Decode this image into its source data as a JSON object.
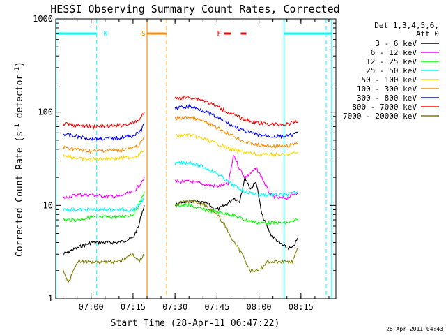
{
  "chart_data": {
    "type": "line",
    "title": "HESSI Observing Summary Count Rates, Corrected",
    "xlabel": "Start Time (28-Apr-11 06:47:22)",
    "ylabel_main": "Corrected Count Rate (s",
    "ylabel_sup1": "-1",
    "ylabel_mid": " detector",
    "ylabel_sup2": "-1",
    "ylabel_end": ")",
    "xlim": [
      "06:47:22",
      "08:27:30"
    ],
    "ylim": [
      1,
      1000
    ],
    "yscale": "log",
    "xticks": [
      "07:00",
      "07:15",
      "07:30",
      "07:45",
      "08:00",
      "08:15"
    ],
    "yticks": [
      1,
      10,
      100,
      1000
    ],
    "ytick_labels": [
      "1",
      "10",
      "100",
      "1000"
    ],
    "legend_header": [
      "Det 1,3,4,5,6,",
      "Att 0"
    ],
    "legend_placement": "right",
    "footer_timestamp": "28-Apr-2011 04:43",
    "data_gap": [
      "07:26:30",
      "07:29:30"
    ],
    "series": [
      {
        "name": "3 - 6 keV",
        "color": "#000000",
        "segments": [
          {
            "x": [
              "06:50",
              "06:55",
              "07:00",
              "07:05",
              "07:10",
              "07:15",
              "07:17",
              "07:18",
              "07:19"
            ],
            "y": [
              3.0,
              3.5,
              4.0,
              4.0,
              4.0,
              4.5,
              6.0,
              8.0,
              10.0
            ]
          },
          {
            "x": [
              "07:30",
              "07:33",
              "07:37",
              "07:41",
              "07:45",
              "07:48",
              "07:51",
              "07:53",
              "07:55",
              "07:57",
              "07:59",
              "08:01",
              "08:04",
              "08:07",
              "08:10",
              "08:12",
              "08:14"
            ],
            "y": [
              10.0,
              11.0,
              11.0,
              10.5,
              9.0,
              10.0,
              12.0,
              11.0,
              20.0,
              15.0,
              18.0,
              8.0,
              5.0,
              4.0,
              3.5,
              3.5,
              4.5
            ]
          }
        ]
      },
      {
        "name": "6 - 12 keV",
        "color": "#ff00ff",
        "segments": [
          {
            "x": [
              "06:50",
              "06:55",
              "07:00",
              "07:05",
              "07:10",
              "07:15",
              "07:17",
              "07:18",
              "07:19"
            ],
            "y": [
              12.0,
              13.0,
              13.0,
              12.5,
              12.5,
              14.0,
              16.0,
              18.0,
              20.0
            ]
          },
          {
            "x": [
              "07:30",
              "07:35",
              "07:40",
              "07:45",
              "07:49",
              "07:51",
              "07:53",
              "07:55",
              "07:57",
              "07:59",
              "08:01",
              "08:04",
              "08:07",
              "08:10",
              "08:12",
              "08:14"
            ],
            "y": [
              18.0,
              18.0,
              17.0,
              16.0,
              17.0,
              35.0,
              25.0,
              20.0,
              22.0,
              25.0,
              20.0,
              13.0,
              12.0,
              12.0,
              13.0,
              14.0
            ]
          }
        ]
      },
      {
        "name": "12 - 25 keV",
        "color": "#00ff00",
        "segments": [
          {
            "x": [
              "06:50",
              "06:55",
              "07:00",
              "07:05",
              "07:10",
              "07:15",
              "07:17",
              "07:18",
              "07:19"
            ],
            "y": [
              7.0,
              7.0,
              7.5,
              7.5,
              7.5,
              8.0,
              10.0,
              12.0,
              14.0
            ]
          },
          {
            "x": [
              "07:30",
              "07:35",
              "07:40",
              "07:45",
              "07:50",
              "07:55",
              "08:00",
              "08:05",
              "08:10",
              "08:14"
            ],
            "y": [
              10.0,
              10.0,
              9.0,
              8.5,
              8.0,
              7.0,
              6.5,
              6.5,
              6.5,
              7.0
            ]
          }
        ]
      },
      {
        "name": "25 - 50 keV",
        "color": "#00ffff",
        "segments": [
          {
            "x": [
              "06:50",
              "06:55",
              "07:00",
              "07:05",
              "07:10",
              "07:15",
              "07:17",
              "07:18",
              "07:19"
            ],
            "y": [
              9.0,
              9.0,
              9.0,
              9.0,
              9.0,
              9.0,
              10.0,
              11.0,
              12.0
            ]
          },
          {
            "x": [
              "07:30",
              "07:35",
              "07:40",
              "07:45",
              "07:50",
              "07:55",
              "08:00",
              "08:05",
              "08:10",
              "08:14"
            ],
            "y": [
              28.0,
              29.0,
              26.0,
              22.0,
              17.0,
              14.0,
              13.0,
              13.0,
              13.0,
              14.0
            ]
          }
        ]
      },
      {
        "name": "50 - 100 keV",
        "color": "#ffd700",
        "segments": [
          {
            "x": [
              "06:50",
              "06:55",
              "07:00",
              "07:05",
              "07:10",
              "07:15",
              "07:17",
              "07:18",
              "07:19"
            ],
            "y": [
              35.0,
              32.0,
              31.0,
              32.0,
              32.0,
              33.0,
              35.0,
              37.0,
              40.0
            ]
          },
          {
            "x": [
              "07:30",
              "07:35",
              "07:40",
              "07:45",
              "07:50",
              "07:55",
              "08:00",
              "08:05",
              "08:10",
              "08:14"
            ],
            "y": [
              55.0,
              57.0,
              52.0,
              46.0,
              40.0,
              37.0,
              35.0,
              35.0,
              35.0,
              37.0
            ]
          }
        ]
      },
      {
        "name": "100 - 300 keV",
        "color": "#ff8c00",
        "segments": [
          {
            "x": [
              "06:50",
              "06:55",
              "07:00",
              "07:05",
              "07:10",
              "07:15",
              "07:17",
              "07:18",
              "07:19"
            ],
            "y": [
              42.0,
              40.0,
              38.0,
              39.0,
              39.0,
              41.0,
              44.0,
              48.0,
              55.0
            ]
          },
          {
            "x": [
              "07:30",
              "07:35",
              "07:40",
              "07:45",
              "07:50",
              "07:55",
              "08:00",
              "08:05",
              "08:10",
              "08:14"
            ],
            "y": [
              85.0,
              88.0,
              80.0,
              68.0,
              57.0,
              48.0,
              44.0,
              43.0,
              43.0,
              47.0
            ]
          }
        ]
      },
      {
        "name": "300 - 800 keV",
        "color": "#0000ff",
        "segments": [
          {
            "x": [
              "06:50",
              "06:55",
              "07:00",
              "07:05",
              "07:10",
              "07:15",
              "07:17",
              "07:18",
              "07:19"
            ],
            "y": [
              58.0,
              55.0,
              52.0,
              52.0,
              53.0,
              56.0,
              60.0,
              65.0,
              75.0
            ]
          },
          {
            "x": [
              "07:30",
              "07:35",
              "07:40",
              "07:45",
              "07:50",
              "07:55",
              "08:00",
              "08:05",
              "08:10",
              "08:14"
            ],
            "y": [
              110.0,
              115.0,
              105.0,
              88.0,
              73.0,
              62.0,
              57.0,
              55.0,
              55.0,
              60.0
            ]
          }
        ]
      },
      {
        "name": "800 - 7000 keV",
        "color": "#ff0000",
        "segments": [
          {
            "x": [
              "06:50",
              "06:55",
              "07:00",
              "07:05",
              "07:10",
              "07:15",
              "07:17",
              "07:18",
              "07:19"
            ],
            "y": [
              75.0,
              72.0,
              70.0,
              70.0,
              72.0,
              76.0,
              82.0,
              90.0,
              100.0
            ]
          },
          {
            "x": [
              "07:30",
              "07:35",
              "07:40",
              "07:45",
              "07:50",
              "07:55",
              "08:00",
              "08:05",
              "08:10",
              "08:14"
            ],
            "y": [
              140.0,
              145.0,
              135.0,
              115.0,
              96.0,
              83.0,
              76.0,
              74.0,
              74.0,
              80.0
            ]
          }
        ]
      },
      {
        "name": "7000 - 20000 keV",
        "color": "#808000",
        "segments": [
          {
            "x": [
              "06:50",
              "06:52",
              "06:55",
              "07:00",
              "07:05",
              "07:10",
              "07:15",
              "07:17",
              "07:19"
            ],
            "y": [
              2.0,
              1.5,
              2.5,
              2.5,
              2.5,
              2.5,
              3.0,
              2.5,
              3.0
            ]
          },
          {
            "x": [
              "07:30",
              "07:33",
              "07:37",
              "07:41",
              "07:45",
              "07:48",
              "07:51",
              "07:54",
              "07:57",
              "08:00",
              "08:03",
              "08:06",
              "08:10",
              "08:12",
              "08:14"
            ],
            "y": [
              10.0,
              11.0,
              11.0,
              10.0,
              8.0,
              6.0,
              4.0,
              3.0,
              2.0,
              2.0,
              2.5,
              2.5,
              2.5,
              2.5,
              3.5
            ]
          }
        ]
      }
    ],
    "flags": [
      {
        "label": "N",
        "color": "#00ffff",
        "dashed": [
          "07:02:00",
          "08:24:00"
        ],
        "solid": [
          "06:47:30",
          "08:09:00",
          "08:26:00"
        ],
        "bars": [
          [
            "06:47:30",
            "07:02:00"
          ],
          [
            "08:09:00",
            "08:26:00"
          ]
        ]
      },
      {
        "label": "S",
        "color": "#ff8c00",
        "dashed": [
          "07:27:00"
        ],
        "solid": [
          "07:20:00"
        ],
        "bars": [
          [
            "07:20:00",
            "07:27:00"
          ]
        ]
      },
      {
        "label": "F",
        "color": "#ff0000",
        "dashed": [],
        "solid": [],
        "bars": [
          [
            "07:47:30",
            "07:50:00"
          ],
          [
            "07:53:30",
            "07:55:30"
          ]
        ]
      }
    ]
  }
}
